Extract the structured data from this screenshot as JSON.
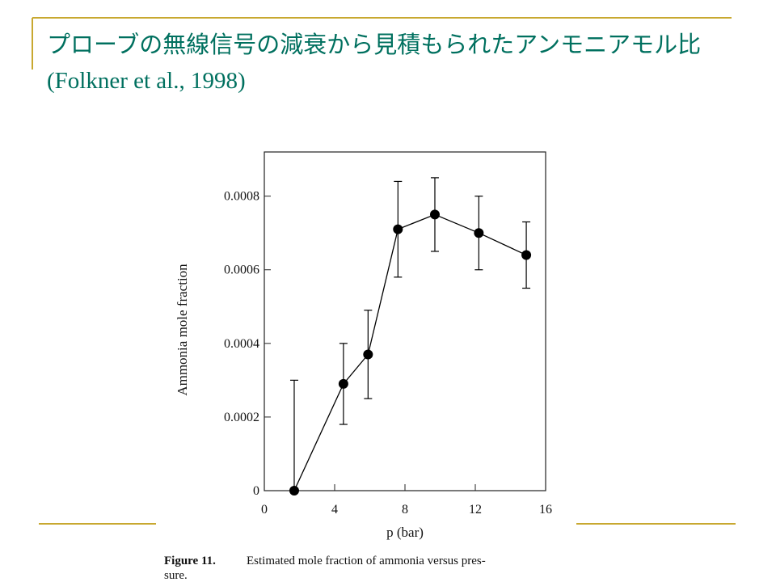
{
  "slide": {
    "title": "プローブの無線信号の減衰から見積もられたアンモニアモル比 (Folkner et al., 1998)"
  },
  "chart_data": {
    "type": "errorbar-line",
    "x_label": "p (bar)",
    "y_label": "Ammonia mole fraction",
    "x": [
      1.7,
      4.5,
      5.9,
      7.6,
      9.7,
      12.2,
      14.9
    ],
    "values": [
      0,
      0.00029,
      0.00037,
      0.00071,
      0.00075,
      0.0007,
      0.00064
    ],
    "errors": [
      0.0003,
      0.00011,
      0.00012,
      0.00013,
      0.0001,
      0.0001,
      9e-05
    ],
    "color": "#000000",
    "xlim": [
      0,
      16
    ],
    "xticks": [
      0,
      4,
      8,
      12,
      16
    ],
    "ylim": [
      0,
      0.00092
    ],
    "yticks": [
      0,
      0.0002,
      0.0004,
      0.0006,
      0.0008
    ]
  },
  "caption": {
    "label": "Figure 11.",
    "lines": [
      "Estimated mole fraction of ammonia versus pres-",
      "sure."
    ]
  }
}
